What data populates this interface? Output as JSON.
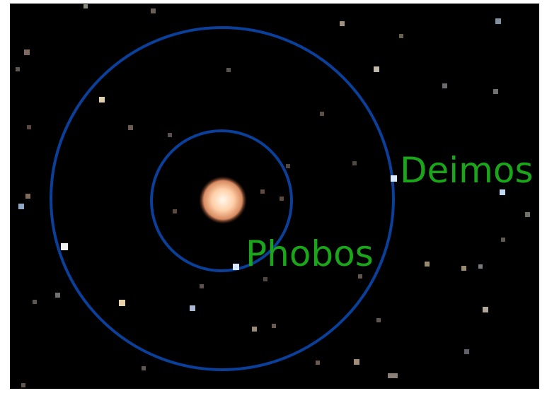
{
  "labels": {
    "outer_moon": "Deimos",
    "inner_moon": "Phobos"
  }
}
